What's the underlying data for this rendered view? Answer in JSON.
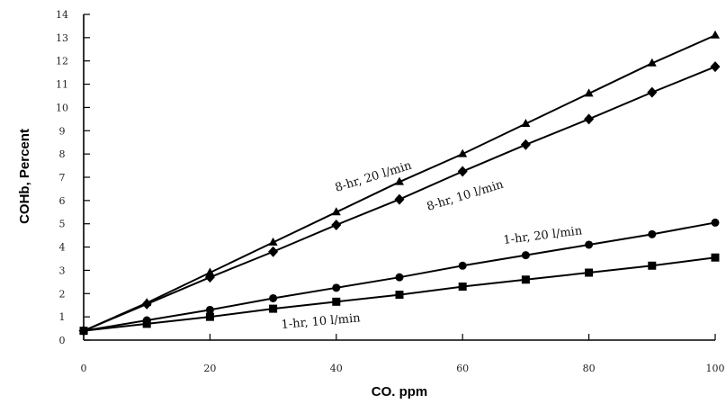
{
  "chart_data": {
    "type": "line",
    "title": "",
    "xlabel": "CO. ppm",
    "ylabel": "COHb, Percent",
    "xlim": [
      0,
      100
    ],
    "ylim": [
      0,
      14
    ],
    "x_ticks": [
      0,
      20,
      40,
      60,
      80,
      100
    ],
    "y_ticks": [
      0,
      1,
      2,
      3,
      4,
      5,
      6,
      7,
      8,
      9,
      10,
      11,
      12,
      13,
      14
    ],
    "x_tick_labels": [
      "0",
      "20",
      "40",
      "60",
      "80",
      "100"
    ],
    "y_tick_labels": [
      "0",
      "1",
      "2",
      "3",
      "4",
      "5",
      "6",
      "7",
      "8",
      "9",
      "10",
      "11",
      "12",
      "13",
      "14"
    ],
    "grid": false,
    "legend": "none",
    "x": [
      0,
      10,
      20,
      30,
      40,
      50,
      60,
      70,
      80,
      90,
      100
    ],
    "series": [
      {
        "name": "8-hr, 20 l/min",
        "marker": "triangle",
        "values": [
          0.4,
          1.6,
          2.9,
          4.2,
          5.5,
          6.8,
          8.0,
          9.3,
          10.6,
          11.9,
          13.1
        ]
      },
      {
        "name": "8-hr, 10 l/min",
        "marker": "diamond",
        "values": [
          0.4,
          1.55,
          2.7,
          3.8,
          4.95,
          6.05,
          7.25,
          8.4,
          9.5,
          10.65,
          11.75
        ]
      },
      {
        "name": "1-hr, 20 l/min",
        "marker": "circle",
        "values": [
          0.4,
          0.85,
          1.3,
          1.8,
          2.25,
          2.7,
          3.2,
          3.65,
          4.1,
          4.55,
          5.05
        ]
      },
      {
        "name": "1-hr, 10 l/min",
        "marker": "square",
        "values": [
          0.4,
          0.7,
          1.0,
          1.35,
          1.65,
          1.95,
          2.3,
          2.6,
          2.9,
          3.2,
          3.55
        ]
      }
    ]
  }
}
